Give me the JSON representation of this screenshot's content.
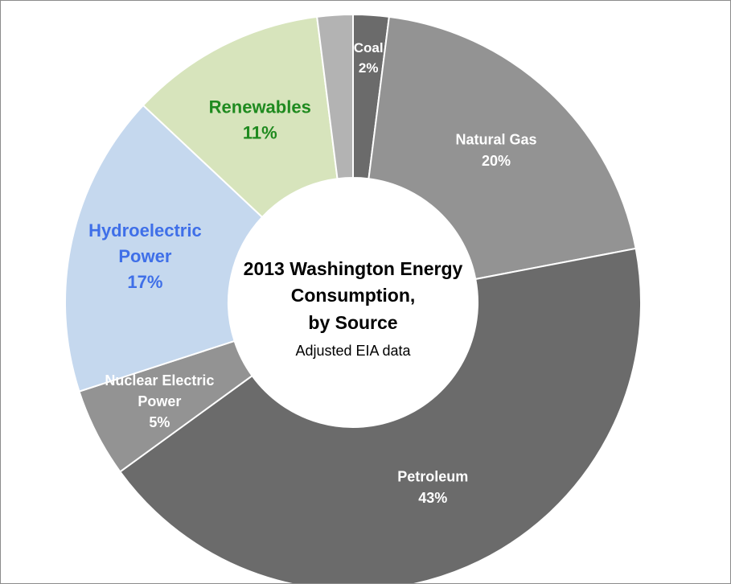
{
  "chart_data": {
    "type": "pie",
    "title_lines": [
      "2013 Washington Energy",
      "Consumption,",
      "by Source"
    ],
    "subtitle": "Adjusted EIA data",
    "slices": [
      {
        "label_lines": [
          "Coal"
        ],
        "value": 2,
        "value_label": "2%",
        "color": "#6b6b6b",
        "label_color": "#ffffff"
      },
      {
        "label_lines": [
          "Natural Gas"
        ],
        "value": 20,
        "value_label": "20%",
        "color": "#939393",
        "label_color": "#ffffff"
      },
      {
        "label_lines": [
          "Petroleum"
        ],
        "value": 43,
        "value_label": "43%",
        "color": "#6b6b6b",
        "label_color": "#ffffff"
      },
      {
        "label_lines": [
          "Nuclear Electric",
          "Power"
        ],
        "value": 5,
        "value_label": "5%",
        "color": "#939393",
        "label_color": "#ffffff"
      },
      {
        "label_lines": [
          "Hydroelectric",
          "Power"
        ],
        "value": 17,
        "value_label": "17%",
        "color": "#c5d8ee",
        "label_color": "#3f6fe8"
      },
      {
        "label_lines": [
          "Renewables"
        ],
        "value": 11,
        "value_label": "11%",
        "color": "#d7e4bc",
        "label_color": "#1f8a1f"
      },
      {
        "label_lines": [],
        "value": 2,
        "value_label": "",
        "color": "#b3b3b3",
        "label_color": "#ffffff"
      }
    ]
  }
}
